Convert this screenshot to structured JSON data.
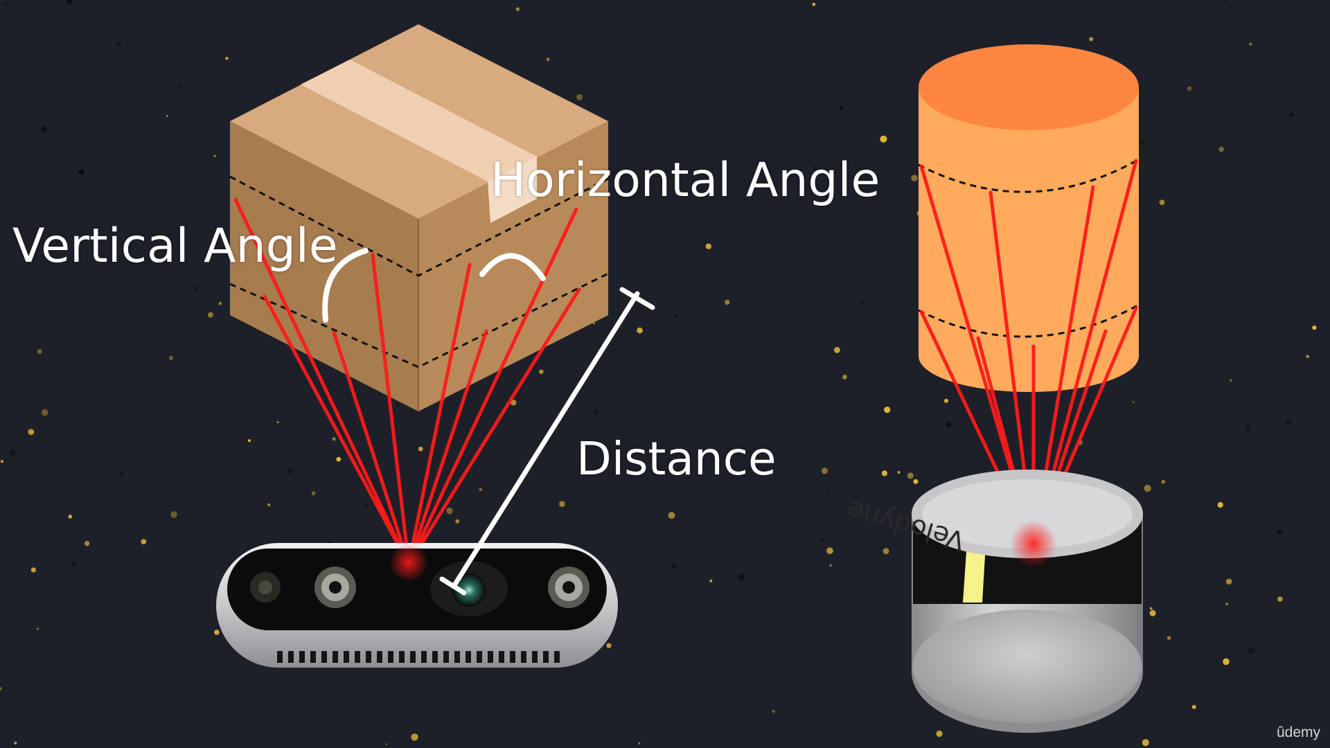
{
  "labels": {
    "vertical_angle": "Vertical Angle",
    "horizontal_angle": "Horizontal Angle",
    "distance": "Distance"
  },
  "devices": {
    "lidar_brand": "Velodyne"
  },
  "watermark": "ûdemy",
  "colors": {
    "background": "#1e2029",
    "laser": "#ff1a1a",
    "box_top": "#d7aa7f",
    "box_left": "#a77c4f",
    "box_right": "#b88a59",
    "tape": "#f0cfb2",
    "cylinder_body": "#ffaa5c",
    "cylinder_top": "#ff8640",
    "annotation": "#ffffff",
    "speckle": "#f2c53d"
  },
  "icons": [
    "cardboard-box",
    "orange-cylinder",
    "depth-camera",
    "lidar-sensor"
  ]
}
